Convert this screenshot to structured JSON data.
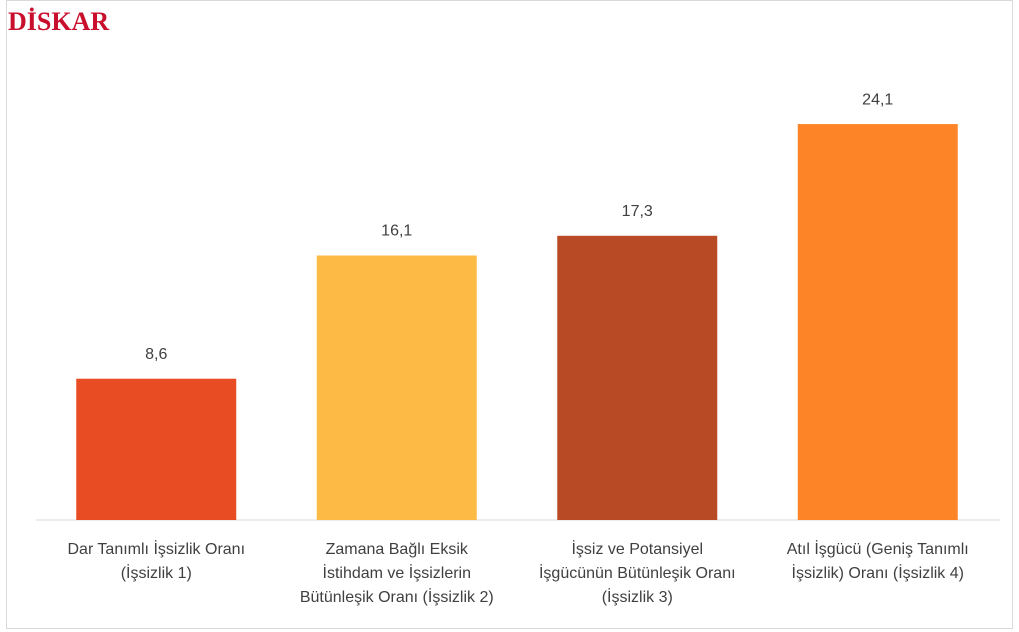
{
  "logo": "DİSKAR",
  "chart_data": {
    "type": "bar",
    "categories": [
      [
        "Dar Tanımlı İşsizlik Oranı",
        "(İşsizlik 1)"
      ],
      [
        "Zamana Bağlı Eksik",
        "İstihdam ve İşsizlerin",
        "Bütünleşik Oranı (İşsizlik 2)"
      ],
      [
        "İşsiz ve Potansiyel",
        "İşgücünün Bütünleşik Oranı",
        "(İşsizlik 3)"
      ],
      [
        "Atıl İşgücü (Geniş Tanımlı",
        "İşsizlik) Oranı (İşsizlik 4)"
      ]
    ],
    "values": [
      8.6,
      16.1,
      17.3,
      24.1
    ],
    "value_labels": [
      "8,6",
      "16,1",
      "17,3",
      "24,1"
    ],
    "colors": [
      "#e84c22",
      "#fdba45",
      "#b84a25",
      "#fe8527"
    ],
    "ylim": [
      0,
      28
    ]
  }
}
